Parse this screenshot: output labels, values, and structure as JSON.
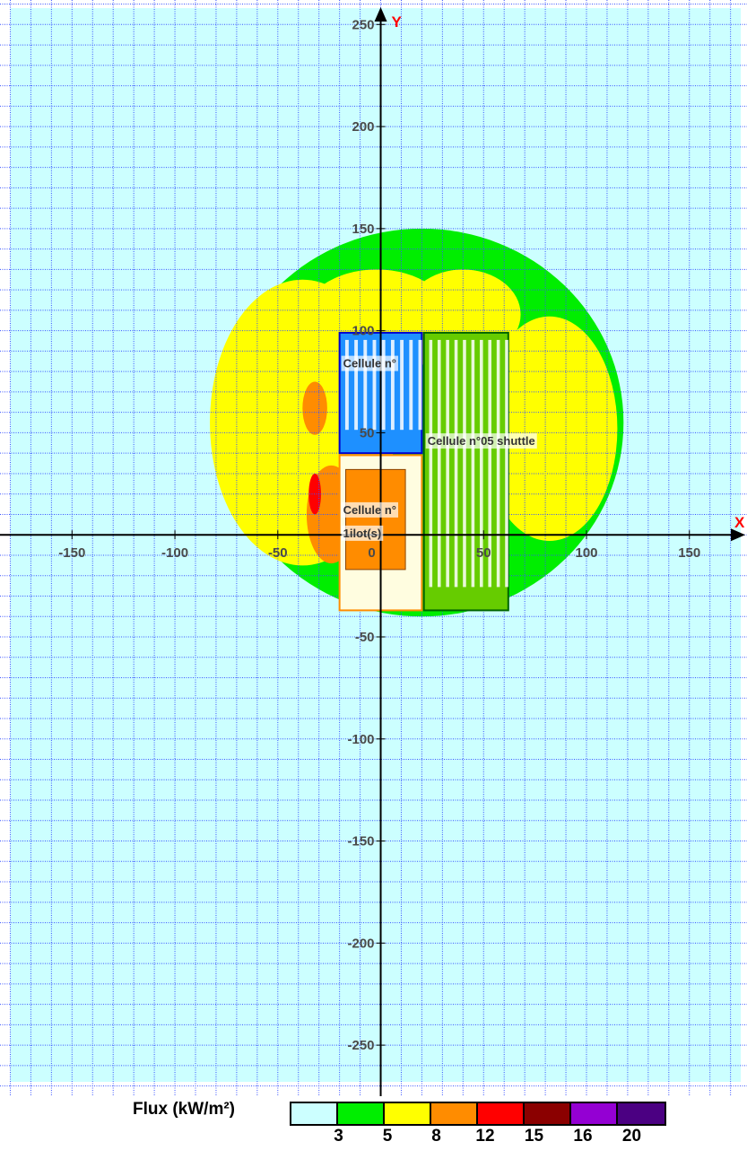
{
  "chart_data": {
    "type": "heatmap",
    "axes": {
      "x_name": "X",
      "y_name": "Y",
      "xlim": [
        -185,
        178
      ],
      "ylim": [
        -275,
        262
      ],
      "x_ticks": [
        -150,
        -100,
        -50,
        0,
        50,
        100,
        150
      ],
      "x_tick_labels": [
        "-150",
        "-100",
        "-50",
        "0",
        "50",
        "100",
        "150"
      ],
      "y_ticks": [
        250,
        200,
        150,
        100,
        50,
        -50,
        -100,
        -150,
        -200,
        -250
      ],
      "y_tick_labels": [
        "250",
        "200",
        "150",
        "100",
        "50",
        "-50",
        "-100",
        "-150",
        "-200",
        "-250"
      ],
      "grid": true,
      "grid_step": 10
    },
    "legend": {
      "title": "Flux (kW/m²)",
      "placement": "bottom",
      "colors": [
        "#ccffff",
        "#00ee00",
        "#ffff00",
        "#ff8c00",
        "#ff0000",
        "#8b0000",
        "#9400d3",
        "#4b0082"
      ],
      "tick_labels": [
        "3",
        "5",
        "8",
        "12",
        "15",
        "16",
        "20"
      ]
    },
    "zones": [
      {
        "level": 3,
        "color": "#00ee00",
        "shape": "ellipse",
        "center": [
          20,
          55
        ],
        "radius": [
          98,
          95
        ]
      },
      {
        "level": 5,
        "color": "#ffff00",
        "shape": "ellipse",
        "center": [
          -38,
          55
        ],
        "radius": [
          45,
          70
        ]
      },
      {
        "level": 5,
        "color": "#ffff00",
        "shape": "ellipse",
        "center": [
          -2,
          104
        ],
        "radius": [
          37,
          26
        ]
      },
      {
        "level": 5,
        "color": "#ffff00",
        "shape": "ellipse",
        "center": [
          40,
          108
        ],
        "radius": [
          28,
          22
        ]
      },
      {
        "level": 5,
        "color": "#ffff00",
        "shape": "ellipse",
        "center": [
          82,
          52
        ],
        "radius": [
          33,
          55
        ]
      },
      {
        "level": 8,
        "color": "#ff8c00",
        "shape": "ellipse",
        "center": [
          -32,
          62
        ],
        "radius": [
          6,
          13
        ]
      },
      {
        "level": 8,
        "color": "#ff8c00",
        "shape": "ellipse",
        "center": [
          -24,
          10
        ],
        "radius": [
          12,
          24
        ]
      },
      {
        "level": 12,
        "color": "#ff0000",
        "shape": "ellipse",
        "center": [
          -32,
          20
        ],
        "radius": [
          3,
          10
        ]
      }
    ],
    "cells": [
      {
        "label_lines": [
          "Cellule n°"
        ],
        "x": [
          -20,
          20
        ],
        "y": [
          40,
          99
        ],
        "border": "#0000cc",
        "fill": "#1e90ff",
        "stripes": 9
      },
      {
        "label_lines": [
          "Cellule n°05 shuttle"
        ],
        "x": [
          21,
          62
        ],
        "y": [
          -37,
          99
        ],
        "border": "#006600",
        "fill": "#66cc00",
        "stripes": 10
      },
      {
        "label_lines": [
          "Cellule n°",
          "1ilot(s)"
        ],
        "x": [
          -20,
          20
        ],
        "y": [
          -37,
          39
        ],
        "border": "#ff8c00",
        "fill": "#fffde0",
        "stripes": 0
      }
    ],
    "inner_block": {
      "x": [
        -17,
        12
      ],
      "y": [
        -17,
        32
      ],
      "color": "#ff8c00"
    }
  }
}
